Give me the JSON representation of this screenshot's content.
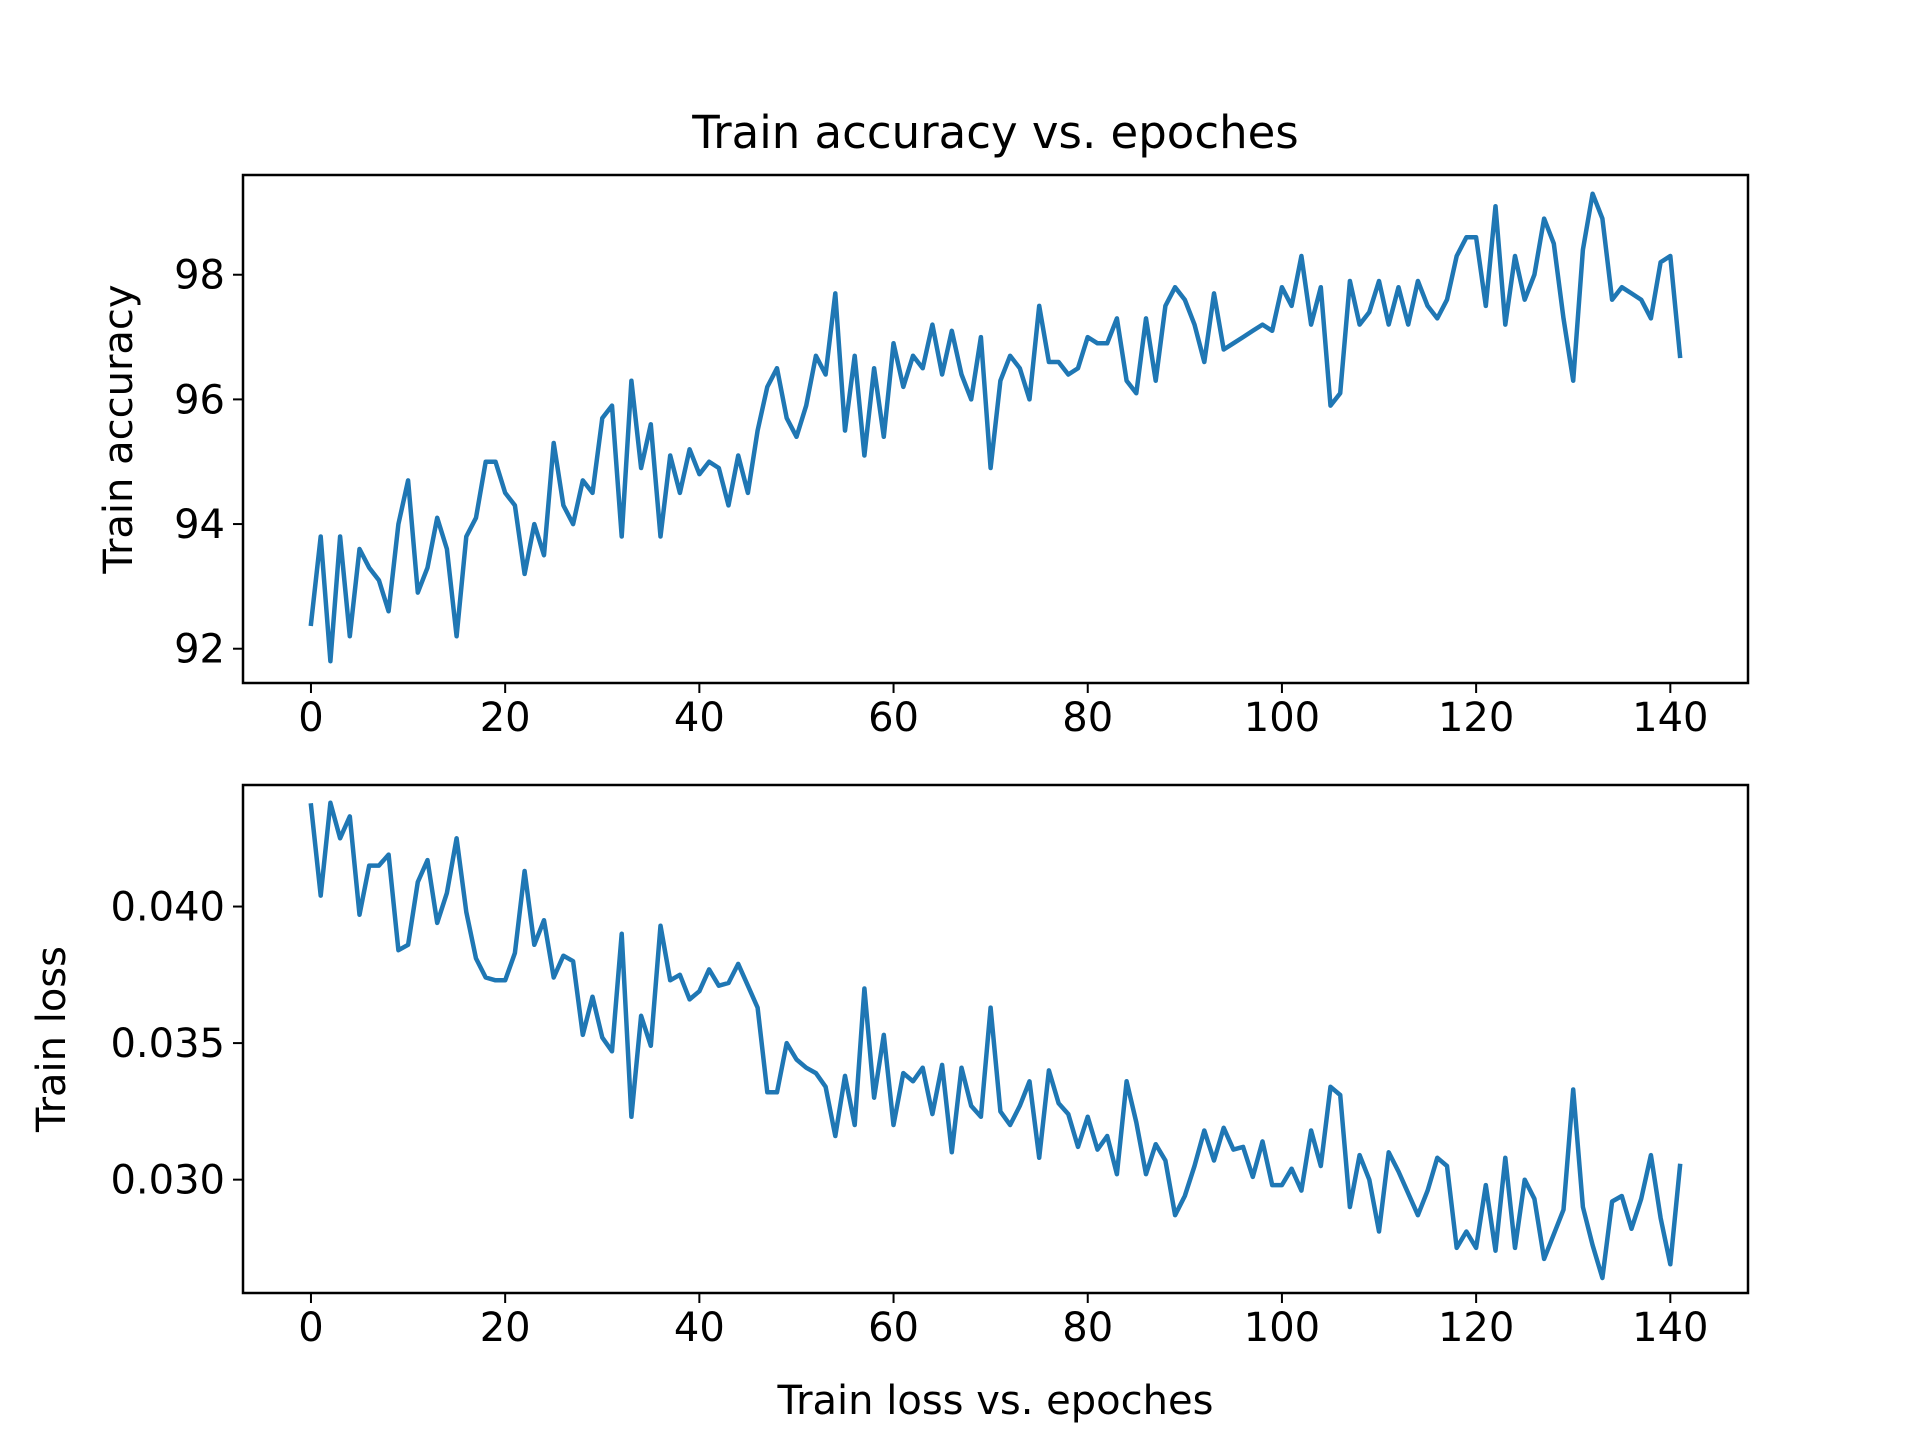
{
  "chart_data": [
    {
      "type": "line",
      "title": "Train accuracy vs. epoches",
      "xlabel": "",
      "ylabel": "Train accuracy",
      "xlim": [
        -7,
        148
      ],
      "ylim": [
        91.45,
        99.6
      ],
      "xticks": [
        0,
        20,
        40,
        60,
        80,
        100,
        120,
        140
      ],
      "yticks": [
        92,
        94,
        96,
        98
      ],
      "grid": false,
      "color": "#1f77b4",
      "series": [
        {
          "x_start": 0,
          "x_step": 1,
          "values": [
            92.4,
            93.8,
            91.8,
            93.8,
            92.2,
            93.6,
            93.3,
            93.1,
            92.6,
            94.0,
            94.7,
            92.9,
            93.3,
            94.1,
            93.6,
            92.2,
            93.8,
            94.1,
            95.0,
            95.0,
            94.5,
            94.3,
            93.2,
            94.0,
            93.5,
            95.3,
            94.3,
            94.0,
            94.7,
            94.5,
            95.7,
            95.9,
            93.8,
            96.3,
            94.9,
            95.6,
            93.8,
            95.1,
            94.5,
            95.2,
            94.8,
            95.0,
            94.9,
            94.3,
            95.1,
            94.5,
            95.5,
            96.2,
            96.5,
            95.7,
            95.4,
            95.9,
            96.7,
            96.4,
            97.7,
            95.5,
            96.7,
            95.1,
            96.5,
            95.4,
            96.9,
            96.2,
            96.7,
            96.5,
            97.2,
            96.4,
            97.1,
            96.4,
            96.0,
            97.0,
            94.9,
            96.3,
            96.7,
            96.5,
            96.0,
            97.5,
            96.6,
            96.6,
            96.4,
            96.5,
            97.0,
            96.9,
            96.9,
            97.3,
            96.3,
            96.1,
            97.3,
            96.3,
            97.5,
            97.8,
            97.6,
            97.2,
            96.6,
            97.7,
            96.8,
            96.9,
            97.0,
            97.1,
            97.2,
            97.1,
            97.8,
            97.5,
            98.3,
            97.2,
            97.8,
            95.9,
            96.1,
            97.9,
            97.2,
            97.4,
            97.9,
            97.2,
            97.8,
            97.2,
            97.9,
            97.5,
            97.3,
            97.6,
            98.3,
            98.6,
            98.6,
            97.5,
            99.1,
            97.2,
            98.3,
            97.6,
            98.0,
            98.9,
            98.5,
            97.3,
            96.3,
            98.4,
            99.3,
            98.9,
            97.6,
            97.8,
            97.7,
            97.6,
            97.3,
            98.2,
            98.3,
            96.7
          ]
        }
      ]
    },
    {
      "type": "line",
      "title": "",
      "xlabel": "Train loss vs. epoches",
      "ylabel": "Train loss",
      "xlim": [
        -7,
        148
      ],
      "ylim": [
        0.02585,
        0.04445
      ],
      "xticks": [
        0,
        20,
        40,
        60,
        80,
        100,
        120,
        140
      ],
      "yticks": [
        0.03,
        0.035,
        0.04
      ],
      "grid": false,
      "color": "#1f77b4",
      "series": [
        {
          "x_start": 0,
          "x_step": 1,
          "values": [
            0.0437,
            0.0404,
            0.0438,
            0.0425,
            0.0433,
            0.0397,
            0.0415,
            0.0415,
            0.0419,
            0.0384,
            0.0386,
            0.0409,
            0.0417,
            0.0394,
            0.0405,
            0.0425,
            0.0398,
            0.0381,
            0.0374,
            0.0373,
            0.0373,
            0.0383,
            0.0413,
            0.0386,
            0.0395,
            0.0374,
            0.0382,
            0.038,
            0.0353,
            0.0367,
            0.0352,
            0.0347,
            0.039,
            0.0323,
            0.036,
            0.0349,
            0.0393,
            0.0373,
            0.0375,
            0.0366,
            0.0369,
            0.0377,
            0.0371,
            0.0372,
            0.0379,
            0.0371,
            0.0363,
            0.0332,
            0.0332,
            0.035,
            0.0344,
            0.0341,
            0.0339,
            0.0334,
            0.0316,
            0.0338,
            0.032,
            0.037,
            0.033,
            0.0353,
            0.032,
            0.0339,
            0.0336,
            0.0341,
            0.0324,
            0.0342,
            0.031,
            0.0341,
            0.0327,
            0.0323,
            0.0363,
            0.0325,
            0.032,
            0.0327,
            0.0336,
            0.0308,
            0.034,
            0.0328,
            0.0324,
            0.0312,
            0.0323,
            0.0311,
            0.0316,
            0.0302,
            0.0336,
            0.0321,
            0.0302,
            0.0313,
            0.0307,
            0.0287,
            0.0294,
            0.0305,
            0.0318,
            0.0307,
            0.0319,
            0.0311,
            0.0312,
            0.0301,
            0.0314,
            0.0298,
            0.0298,
            0.0304,
            0.0296,
            0.0318,
            0.0305,
            0.0334,
            0.0331,
            0.029,
            0.0309,
            0.03,
            0.0281,
            0.031,
            0.0303,
            0.0295,
            0.0287,
            0.0296,
            0.0308,
            0.0305,
            0.0275,
            0.0281,
            0.0275,
            0.0298,
            0.0274,
            0.0308,
            0.0275,
            0.03,
            0.0293,
            0.0271,
            0.028,
            0.0289,
            0.0333,
            0.029,
            0.0276,
            0.0264,
            0.0292,
            0.0294,
            0.0282,
            0.0293,
            0.0309,
            0.0286,
            0.0269,
            0.0305
          ]
        }
      ]
    }
  ]
}
